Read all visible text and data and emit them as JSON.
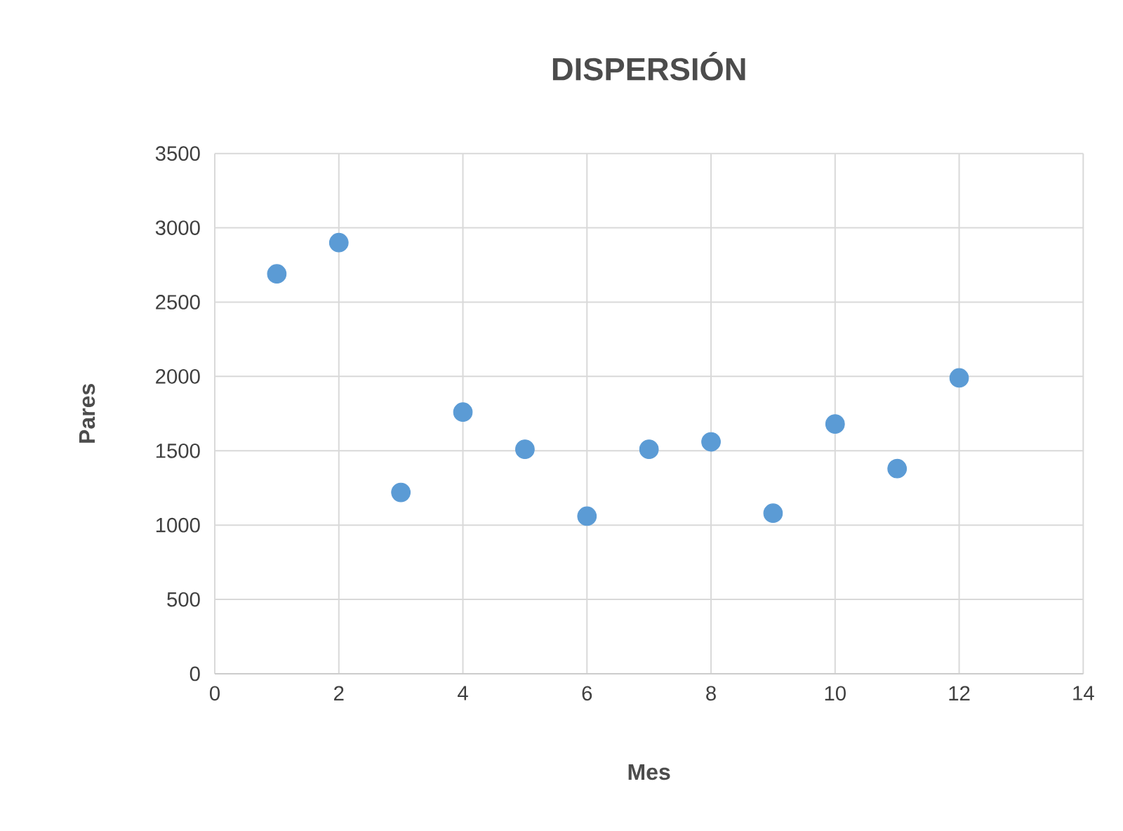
{
  "chart_data": {
    "type": "scatter",
    "title": "DISPERSIÓN",
    "xlabel": "Mes",
    "ylabel": "Pares",
    "x": [
      1,
      2,
      3,
      4,
      5,
      6,
      7,
      8,
      9,
      10,
      11,
      12
    ],
    "values": [
      2690,
      2900,
      1220,
      1760,
      1510,
      1060,
      1510,
      1560,
      1080,
      1680,
      1380,
      1990
    ],
    "color": "#5b9bd5",
    "marker": "circle",
    "xlim": [
      0,
      14
    ],
    "ylim": [
      0,
      3500
    ],
    "xticks": [
      0,
      2,
      4,
      6,
      8,
      10,
      12,
      14
    ],
    "yticks": [
      0,
      500,
      1000,
      1500,
      2000,
      2500,
      3000,
      3500
    ],
    "grid": true
  }
}
